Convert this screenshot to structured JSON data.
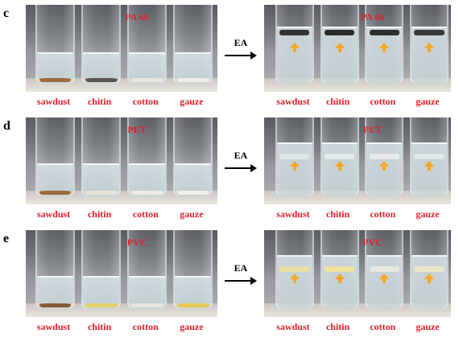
{
  "panels": [
    {
      "letter": "c",
      "polymer": "PA 66",
      "treatment": "EA",
      "samples": [
        "sawdust",
        "chitin",
        "cotton",
        "gauze"
      ],
      "before_sediment_colors": [
        "#9b6b3a",
        "#5a5550",
        "#eae6dc",
        "#f2efe8"
      ],
      "after_floating_colors": [
        "#333333",
        "#2b2b2b",
        "#2e2e2e",
        "#3a3a3a"
      ],
      "arrow_color": "#f5a623",
      "label_color": "#e0202a"
    },
    {
      "letter": "d",
      "polymer": "PET",
      "treatment": "EA",
      "samples": [
        "sawdust",
        "chitin",
        "cotton",
        "gauze"
      ],
      "before_sediment_colors": [
        "#9b6b3a",
        "#e8e4d8",
        "#efece6",
        "#f4f1ea"
      ],
      "after_floating_colors": [
        "#dfe6ea",
        "#e3e9ed",
        "#e5eaee",
        "#e1e7eb"
      ],
      "arrow_color": "#f5a623",
      "label_color": "#e0202a"
    },
    {
      "letter": "e",
      "polymer": "PVC",
      "treatment": "EA",
      "samples": [
        "sawdust",
        "chitin",
        "cotton",
        "gauze"
      ],
      "before_sediment_colors": [
        "#8a5a30",
        "#e6cf6a",
        "#ece8de",
        "#e4c850"
      ],
      "after_floating_colors": [
        "#e9e0a8",
        "#efe39a",
        "#e8e8e0",
        "#ece6c8"
      ],
      "arrow_color": "#f5a623",
      "label_color": "#e0202a"
    }
  ]
}
